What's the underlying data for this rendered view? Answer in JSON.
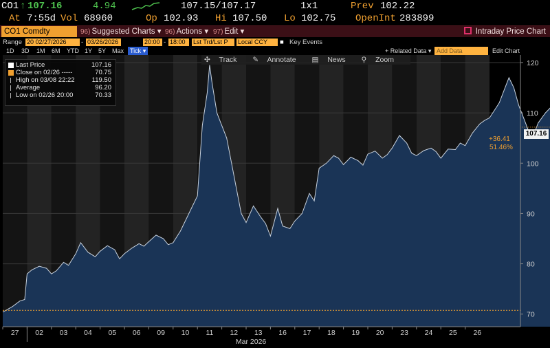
{
  "quote": {
    "ticker": "CO1",
    "arrow": "↑",
    "last": "107.16",
    "change": "4.94",
    "bid_ask": "107.15/107.17",
    "size": "1x1",
    "prev_label": "Prev",
    "prev": "102.22",
    "time_label": "At",
    "time": "7:55d",
    "vol_label": "Vol",
    "vol": "68960",
    "op_label": "Op",
    "op": "102.93",
    "hi_label": "Hi",
    "hi": "107.50",
    "lo_label": "Lo",
    "lo": "102.75",
    "oi_label": "OpenInt",
    "oi": "283899"
  },
  "toolbar": {
    "security": "CO1 Comdty",
    "suggested_num": "96)",
    "suggested": "Suggested Charts",
    "actions_num": "96)",
    "actions": "Actions",
    "edit_num": "97)",
    "edit": "Edit",
    "title": "Intraday Price Chart"
  },
  "range": {
    "label": "Range",
    "from_field": "20 02/27/2026",
    "to_field": "03/26/2026",
    "start_time": "20:00",
    "end_time": "18:00",
    "mode": "Lst Trd/Lst P",
    "currency": "Local CCY",
    "key_events": "Key Events"
  },
  "periods": [
    "1D",
    "3D",
    "1M",
    "6M",
    "YTD",
    "1Y",
    "5Y",
    "Max"
  ],
  "period_selected": "Tick",
  "related_data": "+ Related Data",
  "add_data_placeholder": "Add Data",
  "edit_chart": "Edit Chart",
  "annotate_bar": [
    "Track",
    "Annotate",
    "News",
    "Zoom"
  ],
  "legend": [
    {
      "label": "Last Price",
      "value": "107.16",
      "color": "#ffffff"
    },
    {
      "label": "Close on 02/26 -----",
      "value": "70.75",
      "color": "#f0a030"
    },
    {
      "label": "High on 03/08 22:22",
      "value": "119.50",
      "color": "#bbbbbb"
    },
    {
      "label": "Average",
      "value": "96.20",
      "color": "#bbbbbb"
    },
    {
      "label": "Low on 02/26 20:00",
      "value": "70.33",
      "color": "#bbbbbb"
    }
  ],
  "last_tag": "107.16",
  "change_label": "+36.41",
  "change_pct": "51.46%",
  "chart_data": {
    "type": "area",
    "y_ticks": [
      70,
      80,
      90,
      100,
      110,
      120
    ],
    "ylim": [
      67.5,
      121.5
    ],
    "x_tick_labels": [
      "27",
      "02",
      "03",
      "04",
      "05",
      "06",
      "09",
      "10",
      "11",
      "12",
      "13",
      "16",
      "17",
      "18",
      "19",
      "20",
      "23",
      "24",
      "25",
      "26"
    ],
    "x_month_label": "Mar 2026",
    "reference_close": 70.75,
    "series": [
      {
        "values": [
          [
            0.0,
            70.4
          ],
          [
            0.4,
            71.5
          ],
          [
            0.7,
            72.6
          ],
          [
            0.9,
            72.9
          ],
          [
            1.0,
            78.0
          ],
          [
            1.2,
            78.8
          ],
          [
            1.5,
            79.5
          ],
          [
            1.8,
            79.1
          ],
          [
            2.0,
            78.0
          ],
          [
            2.2,
            78.6
          ],
          [
            2.5,
            80.3
          ],
          [
            2.7,
            79.7
          ],
          [
            3.0,
            82.0
          ],
          [
            3.2,
            84.2
          ],
          [
            3.5,
            82.3
          ],
          [
            3.8,
            81.4
          ],
          [
            4.0,
            82.5
          ],
          [
            4.3,
            83.6
          ],
          [
            4.6,
            82.8
          ],
          [
            4.8,
            81.0
          ],
          [
            5.0,
            82.0
          ],
          [
            5.3,
            83.1
          ],
          [
            5.6,
            84.0
          ],
          [
            5.8,
            83.5
          ],
          [
            6.0,
            84.4
          ],
          [
            6.3,
            85.7
          ],
          [
            6.6,
            85.0
          ],
          [
            6.8,
            83.8
          ],
          [
            7.0,
            84.2
          ],
          [
            7.3,
            86.5
          ],
          [
            7.6,
            89.5
          ],
          [
            7.8,
            91.5
          ],
          [
            8.0,
            93.5
          ],
          [
            8.2,
            107.5
          ],
          [
            8.4,
            114.0
          ],
          [
            8.5,
            119.5
          ],
          [
            8.6,
            116.0
          ],
          [
            8.8,
            110.0
          ],
          [
            9.0,
            107.5
          ],
          [
            9.2,
            105.0
          ],
          [
            9.4,
            100.0
          ],
          [
            9.6,
            95.0
          ],
          [
            9.8,
            90.0
          ],
          [
            10.0,
            88.2
          ],
          [
            10.3,
            91.5
          ],
          [
            10.6,
            89.3
          ],
          [
            10.8,
            88.0
          ],
          [
            11.0,
            85.5
          ],
          [
            11.3,
            91.0
          ],
          [
            11.5,
            87.5
          ],
          [
            11.8,
            87.0
          ],
          [
            12.0,
            88.5
          ],
          [
            12.3,
            90.0
          ],
          [
            12.6,
            94.0
          ],
          [
            12.8,
            92.5
          ],
          [
            13.0,
            99.0
          ],
          [
            13.3,
            100.0
          ],
          [
            13.6,
            101.5
          ],
          [
            13.8,
            101.0
          ],
          [
            14.0,
            99.7
          ],
          [
            14.3,
            101.2
          ],
          [
            14.6,
            100.5
          ],
          [
            14.8,
            99.6
          ],
          [
            15.0,
            101.8
          ],
          [
            15.3,
            102.4
          ],
          [
            15.6,
            101.0
          ],
          [
            15.8,
            101.7
          ],
          [
            16.0,
            103.0
          ],
          [
            16.3,
            105.5
          ],
          [
            16.6,
            104.0
          ],
          [
            16.8,
            102.0
          ],
          [
            17.0,
            101.5
          ],
          [
            17.3,
            102.5
          ],
          [
            17.6,
            103.0
          ],
          [
            17.8,
            102.3
          ],
          [
            18.0,
            101.0
          ],
          [
            18.3,
            102.8
          ],
          [
            18.6,
            102.7
          ],
          [
            18.8,
            104.0
          ],
          [
            19.0,
            103.5
          ],
          [
            19.3,
            106.0
          ],
          [
            19.6,
            107.8
          ],
          [
            19.8,
            108.5
          ],
          [
            20.0,
            109.0
          ],
          [
            20.2,
            110.5
          ],
          [
            20.4,
            112.0
          ],
          [
            20.6,
            114.5
          ],
          [
            20.8,
            117.0
          ],
          [
            21.0,
            115.0
          ],
          [
            21.2,
            111.5
          ],
          [
            21.4,
            109.0
          ],
          [
            21.6,
            106.5
          ],
          [
            21.8,
            105.5
          ],
          [
            22.0,
            108.0
          ],
          [
            22.3,
            110.0
          ],
          [
            22.6,
            111.5
          ],
          [
            22.8,
            112.0
          ],
          [
            23.0,
            113.0
          ],
          [
            23.3,
            113.5
          ],
          [
            23.5,
            114.3
          ],
          [
            23.7,
            113.2
          ],
          [
            23.9,
            110.0
          ],
          [
            24.1,
            105.0
          ],
          [
            24.3,
            101.5
          ],
          [
            24.5,
            100.0
          ],
          [
            24.7,
            99.0
          ],
          [
            25.0,
            101.0
          ],
          [
            25.3,
            104.0
          ],
          [
            25.6,
            103.5
          ],
          [
            25.8,
            102.0
          ],
          [
            26.0,
            100.5
          ],
          [
            26.3,
            102.5
          ],
          [
            26.6,
            102.0
          ],
          [
            26.8,
            99.5
          ],
          [
            27.0,
            98.5
          ],
          [
            27.3,
            99.0
          ],
          [
            27.6,
            100.5
          ],
          [
            27.9,
            101.5
          ],
          [
            28.2,
            102.5
          ],
          [
            28.5,
            103.0
          ],
          [
            28.8,
            103.5
          ],
          [
            29.0,
            104.5
          ],
          [
            29.3,
            106.0
          ],
          [
            29.5,
            107.16
          ]
        ]
      }
    ]
  }
}
